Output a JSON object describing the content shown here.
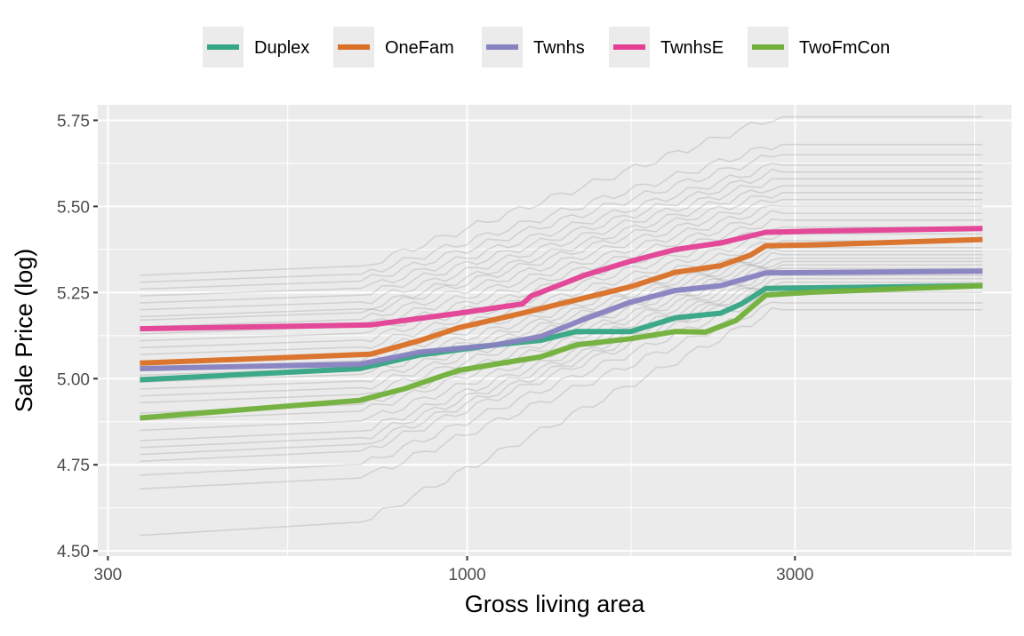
{
  "chart_data": {
    "type": "line",
    "title": "",
    "xlabel": "Gross living area",
    "ylabel": "Sale Price (log)",
    "x_scale": "log10",
    "xlim": [
      290,
      6200
    ],
    "ylim": [
      4.485,
      5.795
    ],
    "x_ticks": [
      300,
      1000,
      3000
    ],
    "x_tick_labels": [
      "300",
      "1000",
      "3000"
    ],
    "x_minor_ticks": [
      548,
      1732,
      5480
    ],
    "y_ticks": [
      4.5,
      4.75,
      5.0,
      5.25,
      5.5,
      5.75
    ],
    "y_tick_labels": [
      "4.50",
      "4.75",
      "5.00",
      "5.25",
      "5.50",
      "5.75"
    ],
    "grid": true,
    "legend_position": "top",
    "series": [
      {
        "name": "Duplex",
        "color": "#35a584",
        "x": [
          334,
          698,
          855,
          1098,
          1278,
          1442,
          1729,
          2011,
          2338,
          2508,
          2722,
          5626
        ],
        "y": [
          4.997,
          5.029,
          5.069,
          5.098,
          5.111,
          5.137,
          5.137,
          5.177,
          5.19,
          5.217,
          5.262,
          5.27
        ]
      },
      {
        "name": "OneFam",
        "color": "#da7026",
        "x": [
          334,
          723,
          855,
          973,
          1203,
          1486,
          1729,
          2011,
          2338,
          2586,
          2722,
          3167,
          5626
        ],
        "y": [
          5.045,
          5.071,
          5.111,
          5.148,
          5.19,
          5.235,
          5.267,
          5.309,
          5.328,
          5.359,
          5.386,
          5.388,
          5.404
        ]
      },
      {
        "name": "Twnhs",
        "color": "#8782c0",
        "x": [
          334,
          698,
          855,
          1098,
          1278,
          1486,
          1729,
          2011,
          2338,
          2722,
          5626
        ],
        "y": [
          5.029,
          5.042,
          5.077,
          5.098,
          5.122,
          5.174,
          5.222,
          5.256,
          5.27,
          5.307,
          5.312
        ]
      },
      {
        "name": "TwnhsE",
        "color": "#e43f93",
        "x": [
          334,
          723,
          973,
          1203,
          1240,
          1486,
          1729,
          2011,
          2338,
          2722,
          3167,
          5626
        ],
        "y": [
          5.145,
          5.156,
          5.19,
          5.217,
          5.24,
          5.301,
          5.341,
          5.375,
          5.394,
          5.425,
          5.428,
          5.436
        ]
      },
      {
        "name": "TwoFmCon",
        "color": "#71b03a",
        "x": [
          334,
          698,
          812,
          870,
          973,
          1098,
          1278,
          1442,
          1729,
          2011,
          2222,
          2463,
          2722,
          3167,
          5626
        ],
        "y": [
          4.886,
          4.937,
          4.971,
          4.992,
          5.024,
          5.042,
          5.063,
          5.098,
          5.116,
          5.137,
          5.135,
          5.169,
          5.243,
          5.251,
          5.27
        ]
      }
    ],
    "background_ice_curves": {
      "color": "#7f7f7f",
      "start_x": 334,
      "end_x": 5626,
      "start_end_pairs": [
        [
          4.545,
          5.2
        ],
        [
          4.68,
          5.22
        ],
        [
          4.72,
          5.25
        ],
        [
          4.76,
          5.27
        ],
        [
          4.78,
          5.28
        ],
        [
          4.8,
          5.29
        ],
        [
          4.82,
          5.3
        ],
        [
          4.85,
          5.31
        ],
        [
          4.88,
          5.32
        ],
        [
          4.9,
          5.33
        ],
        [
          4.93,
          5.34
        ],
        [
          4.95,
          5.35
        ],
        [
          4.97,
          5.36
        ],
        [
          4.99,
          5.37
        ],
        [
          5.01,
          5.38
        ],
        [
          5.03,
          5.4
        ],
        [
          5.05,
          5.42
        ],
        [
          5.07,
          5.44
        ],
        [
          5.09,
          5.46
        ],
        [
          5.11,
          5.48
        ],
        [
          5.13,
          5.5
        ],
        [
          5.15,
          5.52
        ],
        [
          5.17,
          5.54
        ],
        [
          5.18,
          5.56
        ],
        [
          5.2,
          5.58
        ],
        [
          5.22,
          5.6
        ],
        [
          5.24,
          5.62
        ],
        [
          5.26,
          5.65
        ],
        [
          5.28,
          5.68
        ],
        [
          5.3,
          5.76
        ]
      ]
    }
  }
}
